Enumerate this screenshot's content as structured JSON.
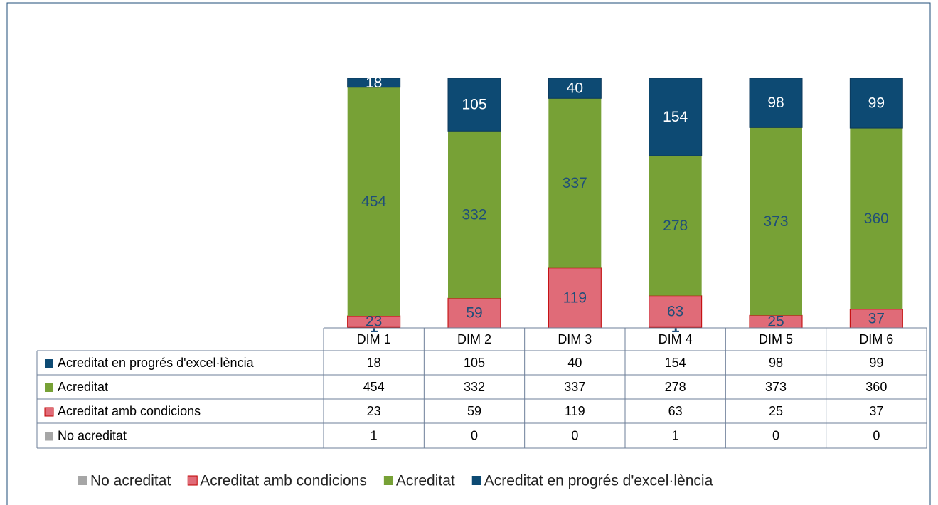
{
  "chart_data": {
    "type": "stacked_bar",
    "categories": [
      "DIM 1",
      "DIM 2",
      "DIM 3",
      "DIM 4",
      "DIM 5",
      "DIM 6"
    ],
    "series": [
      {
        "name": "No acreditat",
        "color": "#a6a6a6",
        "values": [
          1,
          0,
          0,
          1,
          0,
          0
        ]
      },
      {
        "name": "Acreditat amb condicions",
        "color": "#e06b78",
        "values": [
          23,
          59,
          119,
          63,
          25,
          37
        ]
      },
      {
        "name": "Acreditat",
        "color": "#77a136",
        "values": [
          454,
          332,
          337,
          278,
          373,
          360
        ]
      },
      {
        "name": "Acreditat en progrés d'excel·lència",
        "color": "#0d4a73",
        "values": [
          18,
          105,
          40,
          154,
          98,
          99
        ]
      }
    ]
  }
}
